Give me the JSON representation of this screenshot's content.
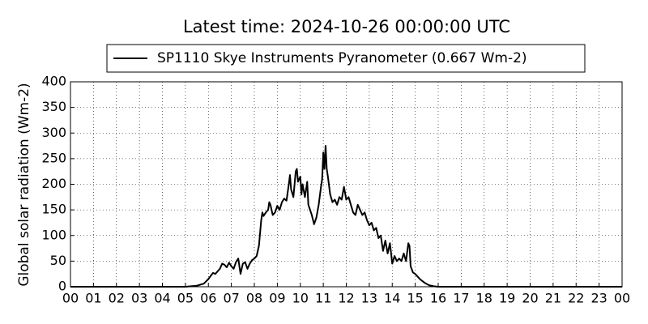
{
  "chart_data": {
    "type": "line",
    "title": "Latest time: 2024-10-26 00:00:00 UTC",
    "y_label": "Global solar radiation (Wm-2)",
    "grid": true,
    "legend_position": "top",
    "xlim": [
      0,
      24
    ],
    "ylim": [
      0,
      400
    ],
    "yticks": [
      0,
      50,
      100,
      150,
      200,
      250,
      300,
      350,
      400
    ],
    "xticks": [
      {
        "value": 0,
        "label": "00"
      },
      {
        "value": 1,
        "label": "01"
      },
      {
        "value": 2,
        "label": "02"
      },
      {
        "value": 3,
        "label": "03"
      },
      {
        "value": 4,
        "label": "04"
      },
      {
        "value": 5,
        "label": "05"
      },
      {
        "value": 6,
        "label": "06"
      },
      {
        "value": 7,
        "label": "07"
      },
      {
        "value": 8,
        "label": "08"
      },
      {
        "value": 9,
        "label": "09"
      },
      {
        "value": 10,
        "label": "10"
      },
      {
        "value": 11,
        "label": "11"
      },
      {
        "value": 12,
        "label": "12"
      },
      {
        "value": 13,
        "label": "13"
      },
      {
        "value": 14,
        "label": "14"
      },
      {
        "value": 15,
        "label": "15"
      },
      {
        "value": 16,
        "label": "16"
      },
      {
        "value": 17,
        "label": "17"
      },
      {
        "value": 18,
        "label": "18"
      },
      {
        "value": 19,
        "label": "19"
      },
      {
        "value": 20,
        "label": "20"
      },
      {
        "value": 21,
        "label": "21"
      },
      {
        "value": 22,
        "label": "22"
      },
      {
        "value": 23,
        "label": "23"
      },
      {
        "value": 24,
        "label": "00"
      }
    ],
    "series": [
      {
        "name": "SP1110 Skye Instruments Pyranometer (0.667 Wm-2)",
        "color": "#000000",
        "x": [
          0,
          5.0,
          5.5,
          5.8,
          6.0,
          6.2,
          6.3,
          6.5,
          6.6,
          6.7,
          6.8,
          6.9,
          7.0,
          7.1,
          7.2,
          7.3,
          7.35,
          7.4,
          7.5,
          7.6,
          7.7,
          7.8,
          7.9,
          8.0,
          8.1,
          8.2,
          8.3,
          8.35,
          8.4,
          8.5,
          8.6,
          8.65,
          8.7,
          8.8,
          8.9,
          9.0,
          9.1,
          9.2,
          9.3,
          9.4,
          9.5,
          9.55,
          9.6,
          9.7,
          9.8,
          9.85,
          9.9,
          10.0,
          10.05,
          10.1,
          10.2,
          10.3,
          10.35,
          10.5,
          10.6,
          10.7,
          10.8,
          10.9,
          10.95,
          11.0,
          11.05,
          11.1,
          11.15,
          11.2,
          11.3,
          11.4,
          11.5,
          11.6,
          11.7,
          11.8,
          11.9,
          12.0,
          12.1,
          12.2,
          12.3,
          12.4,
          12.5,
          12.6,
          12.7,
          12.8,
          12.9,
          13.0,
          13.1,
          13.2,
          13.3,
          13.4,
          13.5,
          13.6,
          13.7,
          13.8,
          13.9,
          14.0,
          14.1,
          14.2,
          14.3,
          14.4,
          14.5,
          14.6,
          14.7,
          14.75,
          14.8,
          14.9,
          15.0,
          15.1,
          15.2,
          15.4,
          15.6,
          15.8,
          16.0,
          24
        ],
        "values": [
          0,
          0,
          2,
          6,
          15,
          27,
          25,
          35,
          45,
          43,
          38,
          47,
          40,
          35,
          48,
          55,
          40,
          25,
          45,
          48,
          35,
          45,
          52,
          55,
          60,
          80,
          130,
          145,
          138,
          145,
          150,
          165,
          160,
          140,
          145,
          158,
          150,
          165,
          172,
          168,
          200,
          218,
          190,
          175,
          225,
          230,
          205,
          215,
          180,
          200,
          175,
          205,
          160,
          140,
          122,
          135,
          160,
          195,
          210,
          262,
          230,
          275,
          230,
          215,
          180,
          165,
          170,
          160,
          175,
          170,
          195,
          170,
          175,
          160,
          145,
          140,
          160,
          150,
          140,
          145,
          130,
          120,
          125,
          110,
          115,
          95,
          100,
          70,
          90,
          65,
          85,
          45,
          60,
          50,
          55,
          50,
          65,
          50,
          85,
          80,
          40,
          28,
          25,
          20,
          15,
          8,
          3,
          1,
          0,
          0
        ]
      }
    ]
  }
}
